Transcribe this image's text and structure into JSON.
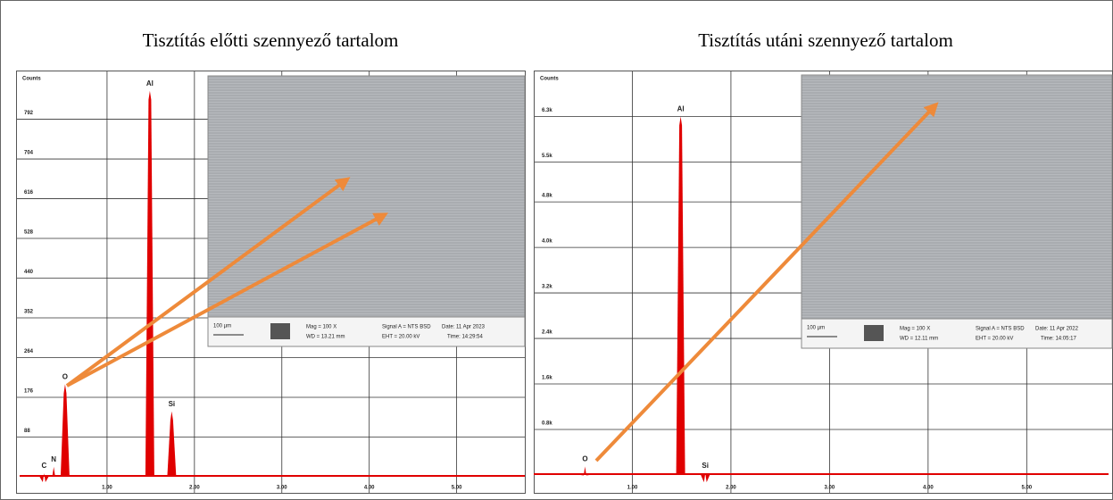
{
  "chart_data": [
    {
      "type": "spectrum",
      "title": "Tisztítás előtti szennyező tartalom",
      "y_label": "Counts",
      "color": "#e00000",
      "x": [
        0.28,
        0.39,
        0.52,
        1.49,
        1.74
      ],
      "values": [
        8,
        22,
        205,
        855,
        145
      ],
      "labels": [
        "C",
        "N",
        "O",
        "Al",
        "Si"
      ],
      "xlim": [
        0,
        5.78
      ],
      "ylim": [
        0,
        890
      ],
      "xticks": [
        {
          "value": 1,
          "label": "1.00"
        },
        {
          "value": 2,
          "label": "2.00"
        },
        {
          "value": 3,
          "label": "3.00"
        },
        {
          "value": 4,
          "label": "4.00"
        },
        {
          "value": 5,
          "label": "5.00"
        }
      ],
      "yticks": [
        88,
        176,
        264,
        352,
        440,
        528,
        616,
        704,
        792
      ],
      "grid": true,
      "inset": {
        "scale": "100 µm",
        "mag": "Mag =   100 X",
        "wd": "WD = 13.21 mm",
        "signal": "Signal A = NTS BSD",
        "date": "Date: 11 Apr 2023",
        "eht": "EHT = 20.00 kV",
        "time": "Time: 14:29:54"
      }
    },
    {
      "type": "spectrum",
      "title": "Tisztítás utáni szennyező tartalom",
      "y_label": "Counts",
      "color": "#e00000",
      "x": [
        0.52,
        1.49,
        1.74
      ],
      "values": [
        150,
        6300,
        30
      ],
      "labels": [
        "O",
        "Al",
        "Si"
      ],
      "xlim": [
        0,
        5.83
      ],
      "ylim": [
        0,
        7030
      ],
      "xticks": [
        {
          "value": 1,
          "label": "1.00"
        },
        {
          "value": 2,
          "label": "2.00"
        },
        {
          "value": 3,
          "label": "3.00"
        },
        {
          "value": 4,
          "label": "4.00"
        },
        {
          "value": 5,
          "label": "5.00"
        }
      ],
      "yticks": [
        {
          "value": 800,
          "label": "0.8k"
        },
        {
          "value": 1600,
          "label": "1.6k"
        },
        {
          "value": 2400,
          "label": "2.4k"
        },
        {
          "value": 3200,
          "label": "3.2k"
        },
        {
          "value": 4000,
          "label": "4.0k"
        },
        {
          "value": 4800,
          "label": "4.8k"
        },
        {
          "value": 5500,
          "label": "5.5k"
        },
        {
          "value": 6300,
          "label": "6.3k"
        }
      ],
      "grid": true,
      "inset": {
        "scale": "100 µm",
        "mag": "Mag =   100 X",
        "wd": "WD = 12.11 mm",
        "signal": "Signal A = NTS BSD",
        "date": "Date: 11 Apr 2022",
        "eht": "EHT = 20.00 kV",
        "time": "Time: 14:05:17"
      }
    }
  ]
}
